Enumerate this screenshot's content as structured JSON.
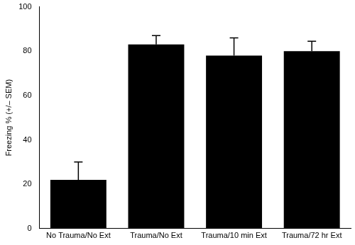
{
  "chart_data": {
    "type": "bar",
    "y_label": "Freezing % (+/– SEM)",
    "categories": [
      "No Trauma/No Ext",
      "Trauma/No Ext",
      "Trauma/10 min Ext",
      "Trauma/72 hr Ext"
    ],
    "values": [
      22,
      83,
      78,
      80
    ],
    "errors": [
      8,
      4,
      8,
      4.5
    ],
    "color": "#000000",
    "ylim": [
      0,
      100
    ],
    "yticks": [
      0,
      20,
      40,
      60,
      80,
      100
    ],
    "grid": false
  }
}
